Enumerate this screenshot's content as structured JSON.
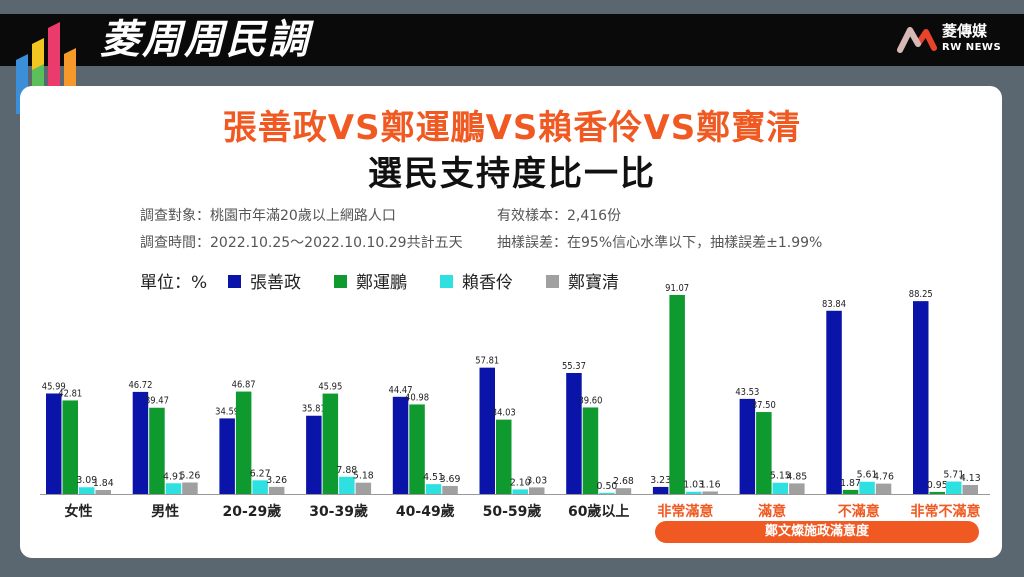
{
  "header": {
    "show_title": "菱周周民調",
    "brand_name": "菱傳媒",
    "brand_sub": "RW NEWS"
  },
  "titles": {
    "line1": "張善政VS鄭運鵬VS賴香伶VS鄭寶清",
    "line2": "選民支持度比一比"
  },
  "survey": {
    "target": "調查對象：桃園市年滿20歲以上網路人口",
    "sample": "有效樣本：2,416份",
    "period": "調查時間：2022.10.25～2022.10.10.29共計五天",
    "error": "抽樣誤差：在95%信心水準以下，抽樣誤差±1.99%"
  },
  "legend": {
    "unit": "單位：%"
  },
  "colors": {
    "accent": "#f05a22",
    "series": [
      "#0b14a8",
      "#0e9a2e",
      "#2ee0e0",
      "#a0a0a0"
    ]
  },
  "chart_data": {
    "type": "bar",
    "categories": [
      "女性",
      "男性",
      "20-29歲",
      "30-39歲",
      "40-49歲",
      "50-59歲",
      "60歲以上",
      "非常滿意",
      "滿意",
      "不滿意",
      "非常不滿意"
    ],
    "category_group": {
      "label": "鄭文燦施政滿意度",
      "categories": [
        "非常滿意",
        "滿意",
        "不滿意",
        "非常不滿意"
      ]
    },
    "series": [
      {
        "name": "張善政",
        "values": [
          "45.99",
          "46.72",
          "34.59",
          "35.81",
          "44.47",
          "57.81",
          "55.37",
          "3.23",
          "43.53",
          "83.84",
          "88.25"
        ]
      },
      {
        "name": "鄭運鵬",
        "values": [
          "42.81",
          "39.47",
          "46.87",
          "45.95",
          "40.98",
          "34.03",
          "39.60",
          "91.07",
          "37.50",
          "1.87",
          "0.95"
        ]
      },
      {
        "name": "賴香伶",
        "values": [
          "3.09",
          "4.91",
          "6.27",
          "7.88",
          "4.51",
          "2.10",
          "0.50",
          "1.03",
          "5.15",
          "5.61",
          "5.71"
        ]
      },
      {
        "name": "鄭寶清",
        "values": [
          "1.84",
          "5.26",
          "3.26",
          "5.18",
          "3.69",
          "3.03",
          "2.68",
          "1.16",
          "4.85",
          "4.76",
          "4.13"
        ]
      }
    ],
    "ylim": [
      0,
      100
    ],
    "grid": false,
    "legend_position": "top-left"
  }
}
